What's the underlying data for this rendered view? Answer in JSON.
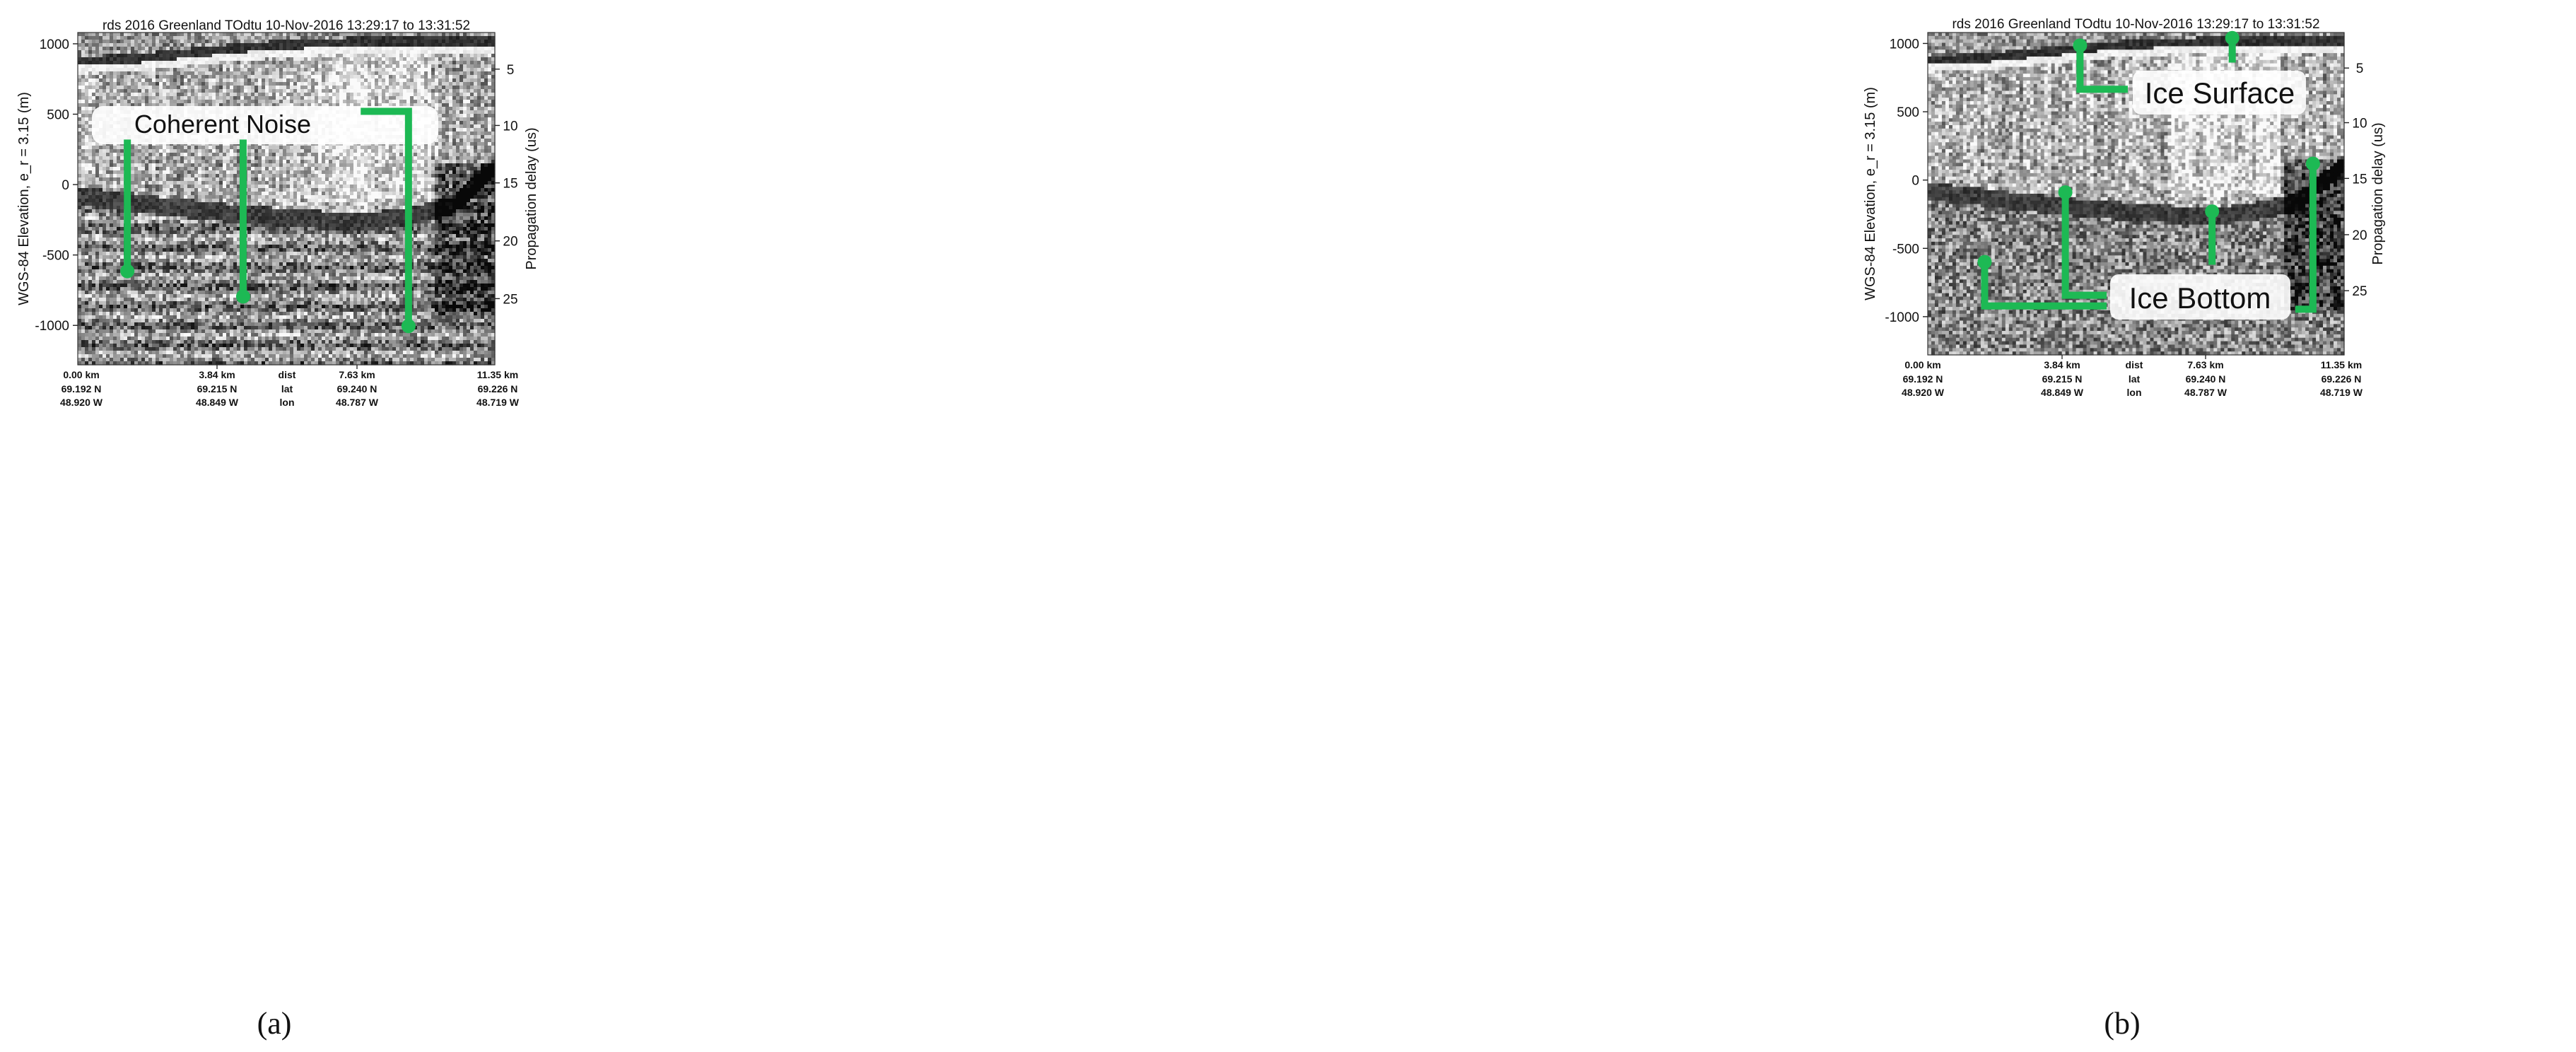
{
  "chart_data": [
    {
      "type": "heatmap",
      "panel_label": "(a)",
      "title": "rds 2016 Greenland TOdtu 10-Nov-2016 13:29:17 to 13:31:52",
      "ylabel": "WGS-84 Elevation, e_r = 3.15 (m)",
      "y2label": "Propagation delay (us)",
      "ylim": [
        -1280,
        1080
      ],
      "yticks": [
        1000,
        500,
        0,
        -500,
        -1000
      ],
      "y2ticks": [
        5,
        10,
        15,
        20,
        25
      ],
      "y2_equivalent_elevation_m": [
        820,
        420,
        12,
        -400,
        -810
      ],
      "xlim_km": [
        0,
        11.35
      ],
      "x_labels": [
        {
          "dist": "0.00 km",
          "lat": "69.192 N",
          "lon": "48.920 W"
        },
        {
          "dist": "3.84 km",
          "lat": "69.215 N",
          "lon": "48.849 W"
        },
        {
          "dist": "7.63 km",
          "lat": "69.240 N",
          "lon": "48.787 W"
        },
        {
          "dist": "11.35 km",
          "lat": "69.226 N",
          "lon": "48.719 W"
        }
      ],
      "x_row_names": [
        "dist",
        "lat",
        "lon"
      ],
      "colormap": "grayscale",
      "annotations": [
        {
          "text": "Coherent Noise",
          "color": "#1db954",
          "pointers": [
            {
              "x_km": 1.35,
              "from_y": 320,
              "to_y": -615
            },
            {
              "x_km": 4.5,
              "from_y": 320,
              "to_y": -795
            },
            {
              "x_km": 9.0,
              "from_y": 520,
              "to_y": -1005,
              "elbow_x_km": 7.7
            }
          ]
        }
      ],
      "features": {
        "ice_surface_elevation_m": [
          870,
          880,
          905,
          935,
          965,
          985,
          1000,
          1005,
          1005,
          1008,
          1010
        ],
        "ice_bottom_elevation_m": [
          -80,
          -110,
          -150,
          -180,
          -210,
          -230,
          -250,
          -260,
          -220,
          -150,
          120
        ]
      }
    },
    {
      "type": "heatmap",
      "panel_label": "(b)",
      "title": "rds 2016 Greenland TOdtu 10-Nov-2016 13:29:17 to 13:31:52",
      "ylabel": "WGS-84 Elevation, e_r = 3.15 (m)",
      "y2label": "Propagation delay (us)",
      "ylim": [
        -1280,
        1080
      ],
      "yticks": [
        1000,
        500,
        0,
        -500,
        -1000
      ],
      "y2ticks": [
        5,
        10,
        15,
        20,
        25
      ],
      "y2_equivalent_elevation_m": [
        820,
        420,
        12,
        -400,
        -810
      ],
      "xlim_km": [
        0,
        11.35
      ],
      "x_labels": [
        {
          "dist": "0.00 km",
          "lat": "69.192 N",
          "lon": "48.920 W"
        },
        {
          "dist": "3.84 km",
          "lat": "69.215 N",
          "lon": "48.849 W"
        },
        {
          "dist": "7.63 km",
          "lat": "69.240 N",
          "lon": "48.787 W"
        },
        {
          "dist": "11.35 km",
          "lat": "69.226 N",
          "lon": "48.719 W"
        }
      ],
      "x_row_names": [
        "dist",
        "lat",
        "lon"
      ],
      "colormap": "grayscale",
      "annotations": [
        {
          "text": "Ice Surface",
          "color": "#1db954",
          "pointers": [
            {
              "x_km": 4.15,
              "from_y": 985,
              "to_y": 820
            },
            {
              "x_km": 8.3,
              "from_y": 1040,
              "to_y": 860
            }
          ]
        },
        {
          "text": "Ice Bottom",
          "color": "#1db954",
          "pointers": [
            {
              "x_km": 1.55,
              "from_y": -600,
              "to_y": -870
            },
            {
              "x_km": 3.75,
              "from_y": -90,
              "to_y": -740
            },
            {
              "x_km": 7.75,
              "from_y": -230,
              "to_y": -620
            },
            {
              "x_km": 10.5,
              "from_y": 120,
              "to_y": -790
            }
          ]
        }
      ],
      "features": {
        "ice_surface_elevation_m": [
          870,
          880,
          905,
          935,
          965,
          985,
          1000,
          1005,
          1005,
          1008,
          1010
        ],
        "ice_bottom_elevation_m": [
          -80,
          -110,
          -150,
          -180,
          -210,
          -230,
          -250,
          -260,
          -220,
          -150,
          120
        ]
      }
    }
  ]
}
